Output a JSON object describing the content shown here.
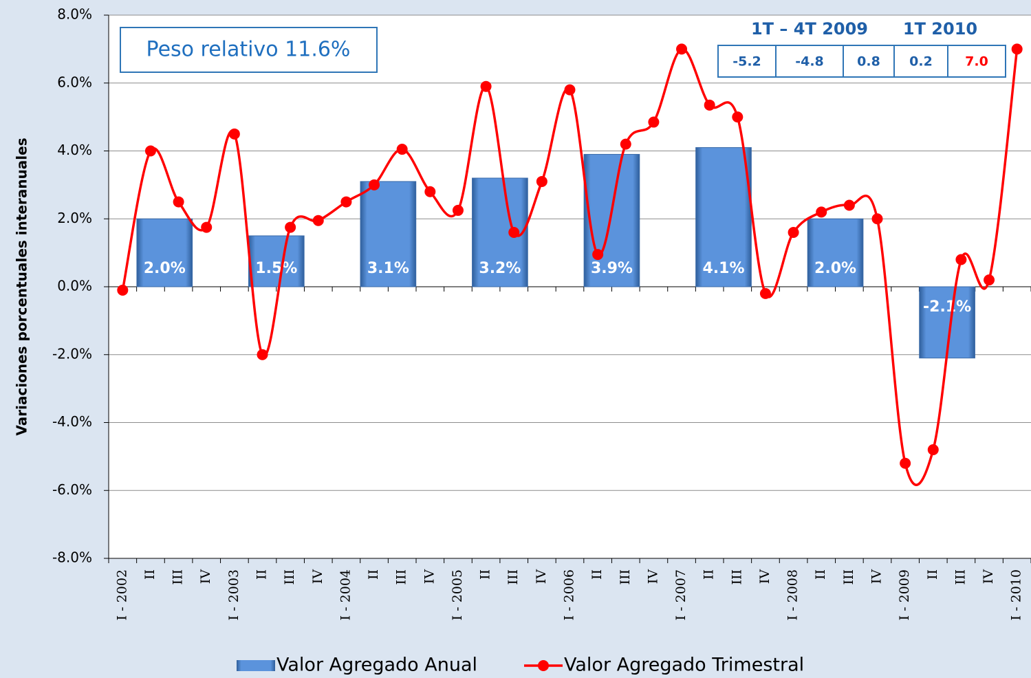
{
  "chart_data": {
    "type": "bar-line",
    "y_label": "Variaciones porcentuales  interanuales",
    "annotation": "Peso relativo 11.6%",
    "annotation_table": {
      "headers": [
        "1T – 4T 2009",
        "1T 2010"
      ],
      "cells": [
        "-5.2",
        "-4.8",
        "0.8",
        "0.2",
        "7.0"
      ]
    },
    "categories": [
      "I - 2002",
      "II",
      "III",
      "IV",
      "I - 2003",
      "II",
      "III",
      "IV",
      "I - 2004",
      "II",
      "III",
      "IV",
      "I - 2005",
      "II",
      "III",
      "IV",
      "I - 2006",
      "II",
      "III",
      "IV",
      "I - 2007",
      "II",
      "III",
      "IV",
      "I - 2008",
      "II",
      "III",
      "IV",
      "I - 2009",
      "II",
      "III",
      "IV",
      "I - 2010"
    ],
    "series": [
      {
        "name": "Valor Agregado Anual",
        "type": "bar",
        "color": "#4f81bd",
        "values": [
          2.0,
          null,
          null,
          null,
          1.5,
          null,
          null,
          null,
          3.1,
          null,
          null,
          null,
          3.2,
          null,
          null,
          null,
          3.9,
          null,
          null,
          null,
          4.1,
          null,
          null,
          null,
          2.0,
          null,
          null,
          null,
          -2.1,
          null,
          null,
          null,
          null
        ],
        "value_labels": [
          "2.0%",
          null,
          null,
          null,
          "1.5%",
          null,
          null,
          null,
          "3.1%",
          null,
          null,
          null,
          "3.2%",
          null,
          null,
          null,
          "3.9%",
          null,
          null,
          null,
          "4.1%",
          null,
          null,
          null,
          "2.0%",
          null,
          null,
          null,
          "-2.1%",
          null,
          null,
          null,
          null
        ]
      },
      {
        "name": "Valor Agregado Trimestral",
        "type": "line",
        "color": "#ff0000",
        "values": [
          -0.1,
          4.0,
          2.5,
          1.75,
          4.5,
          -2.0,
          1.75,
          1.95,
          2.5,
          3.0,
          4.05,
          2.8,
          2.25,
          5.9,
          1.6,
          3.1,
          5.8,
          0.95,
          4.2,
          4.85,
          7.0,
          5.35,
          5.0,
          -0.2,
          1.6,
          2.2,
          2.4,
          2.0,
          -5.2,
          -4.8,
          0.8,
          0.2,
          7.0
        ]
      }
    ],
    "ylim": [
      -8,
      8
    ],
    "yticks": [
      {
        "value": -8,
        "label": "-8.0%"
      },
      {
        "value": -6,
        "label": "-6.0%"
      },
      {
        "value": -4,
        "label": "-4.0%"
      },
      {
        "value": -2,
        "label": "-2.0%"
      },
      {
        "value": 0,
        "label": "0.0%"
      },
      {
        "value": 2,
        "label": "2.0%"
      },
      {
        "value": 4,
        "label": "4.0%"
      },
      {
        "value": 6,
        "label": "6.0%"
      },
      {
        "value": 8,
        "label": "8.0%"
      }
    ],
    "grid": true,
    "legend": "bottom"
  }
}
